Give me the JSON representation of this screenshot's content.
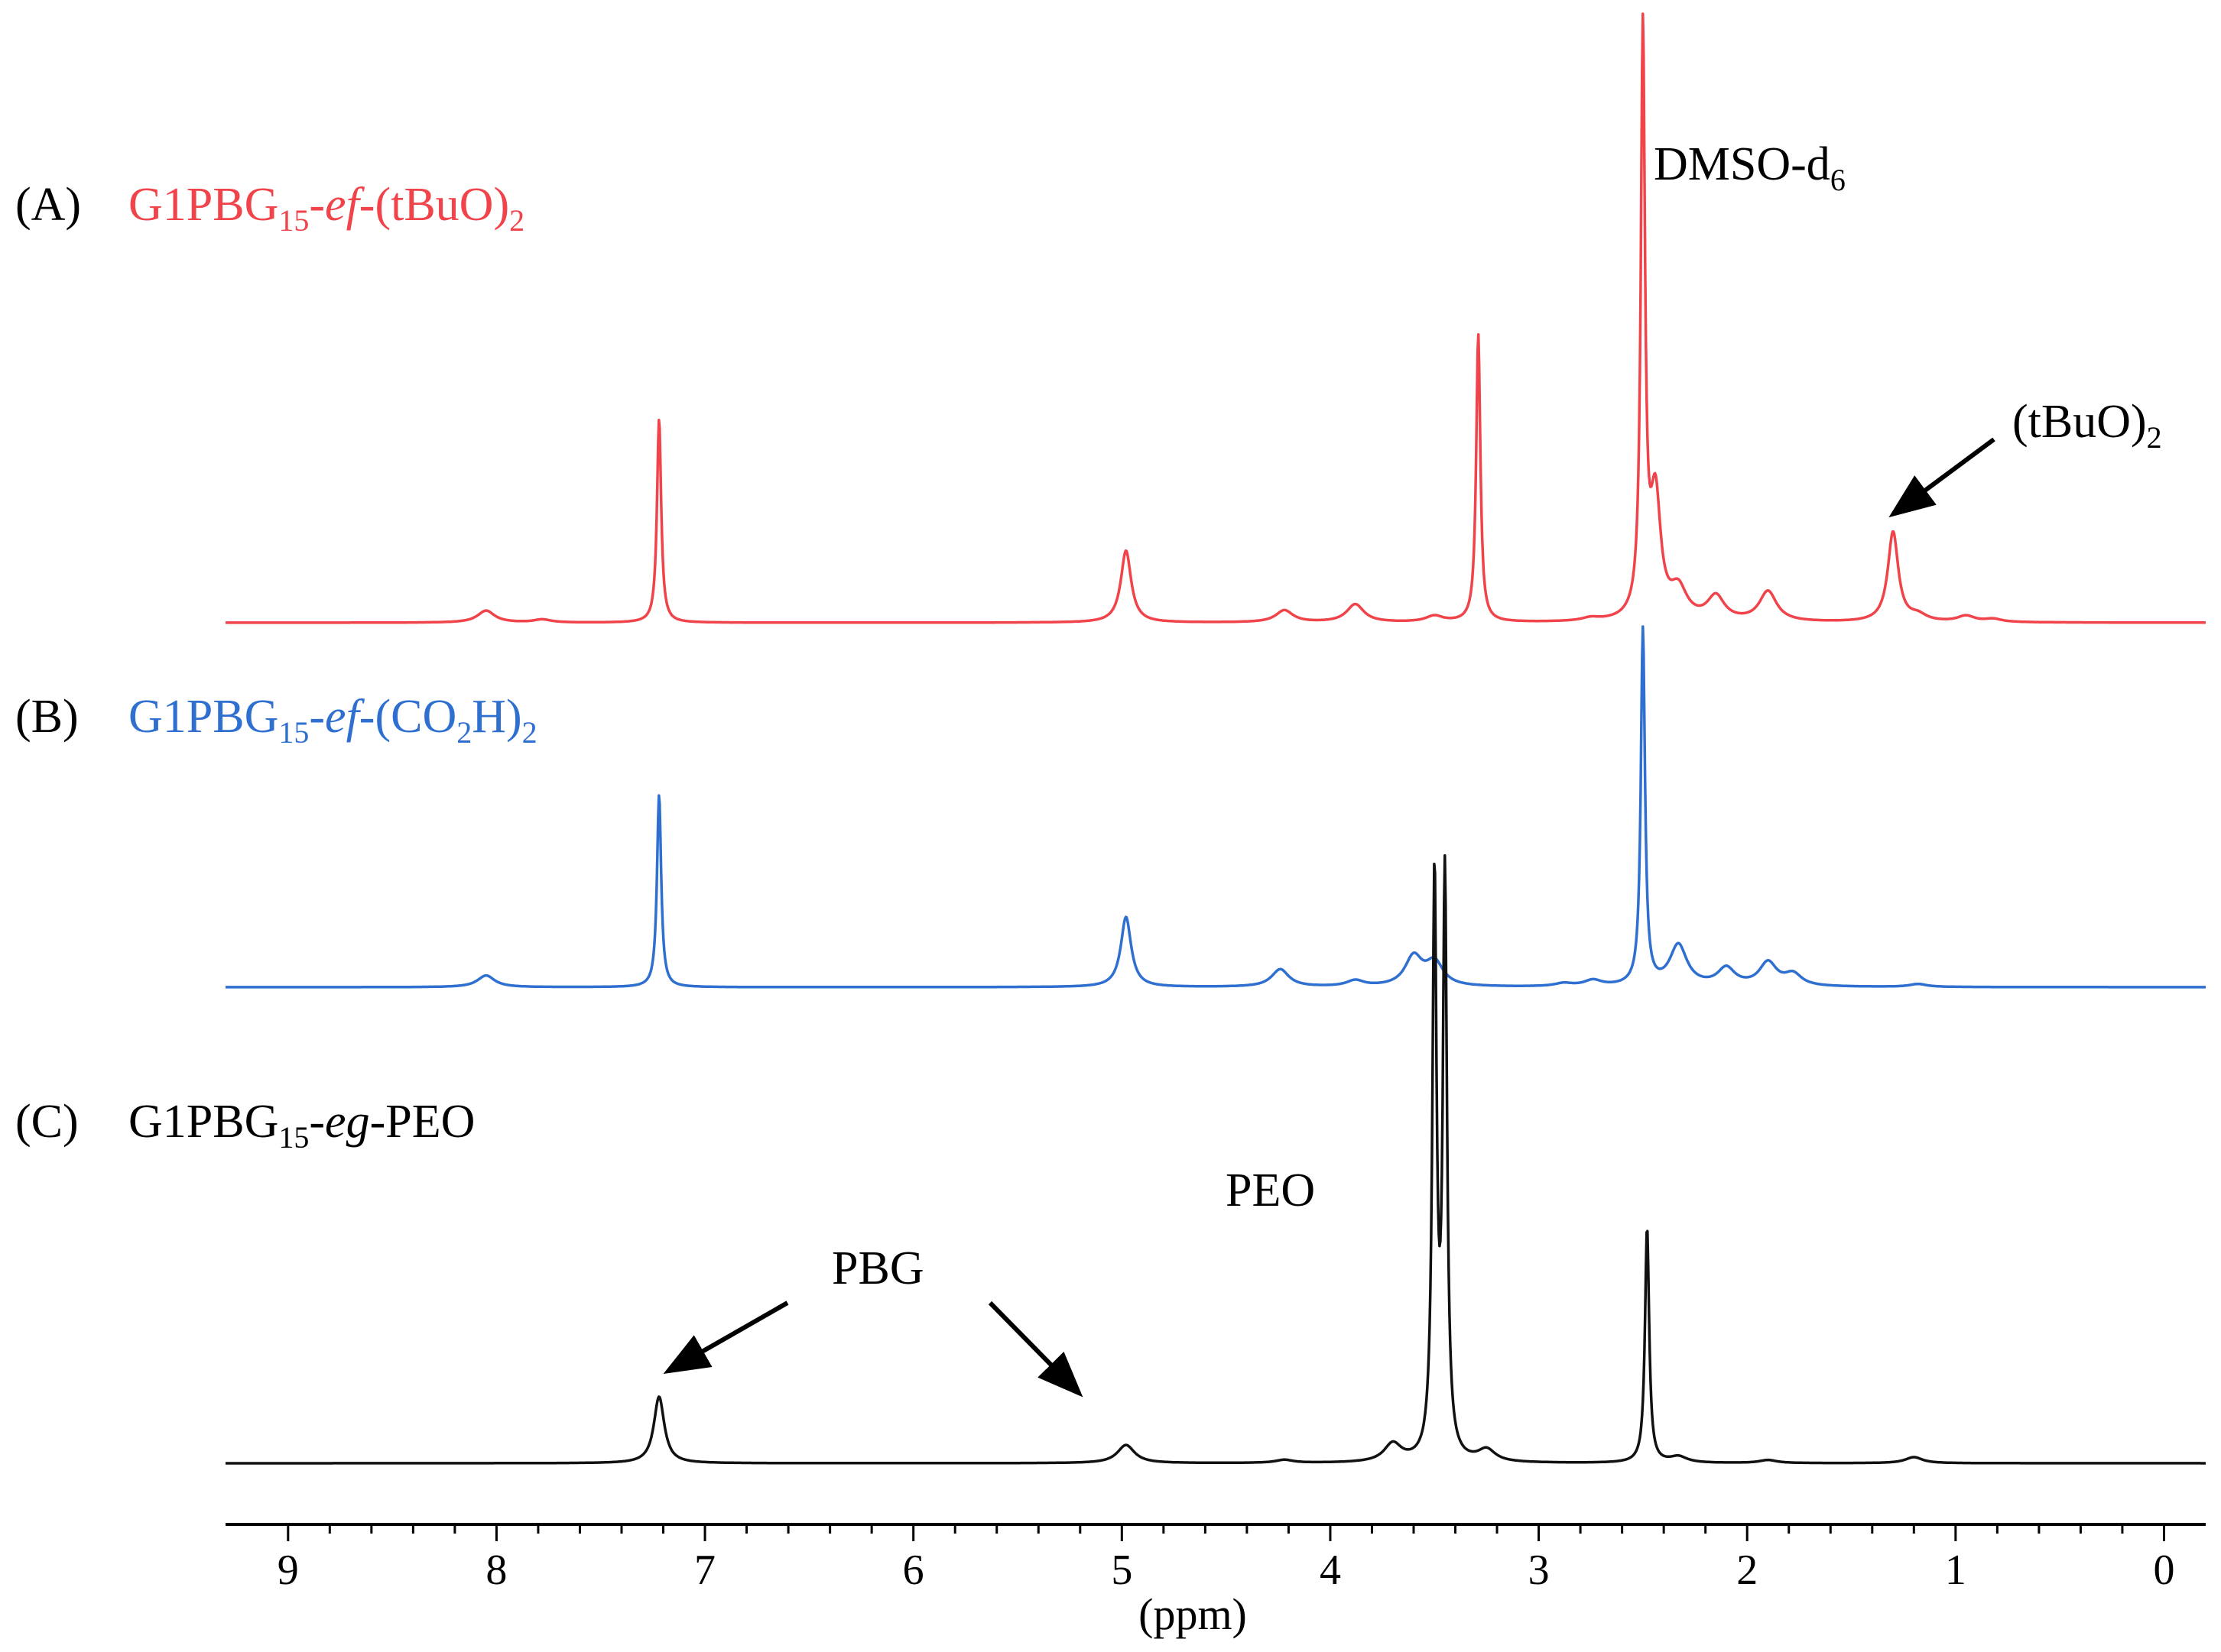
{
  "chart_data": {
    "type": "line",
    "title": "",
    "xlabel": "(ppm)",
    "ylabel": "",
    "xlim": [
      9.3,
      -0.2
    ],
    "x_reversed": true,
    "xticks": [
      9,
      8,
      7,
      6,
      5,
      4,
      3,
      2,
      1,
      0
    ],
    "grid": false,
    "series": [
      {
        "key": "A",
        "panel": "(A)",
        "name_main": "G1PBG",
        "name_sub": "15",
        "name_sep": "-",
        "name_ital": "ef",
        "name_rest": "-(tBuO)",
        "name_tail": "2",
        "color": "#f0434a",
        "peaks": [
          {
            "x": 8.05,
            "h": 0.02
          },
          {
            "x": 7.78,
            "h": 0.005
          },
          {
            "x": 7.22,
            "h": 0.34
          },
          {
            "x": 4.98,
            "h": 0.12
          },
          {
            "x": 4.22,
            "h": 0.02
          },
          {
            "x": 3.88,
            "h": 0.03
          },
          {
            "x": 3.5,
            "h": 0.01
          },
          {
            "x": 3.29,
            "h": 0.48
          },
          {
            "x": 2.75,
            "h": 0.005
          },
          {
            "x": 2.5,
            "h": 0.97
          },
          {
            "x": 2.44,
            "h": 0.2
          },
          {
            "x": 2.33,
            "h": 0.05
          },
          {
            "x": 2.15,
            "h": 0.04
          },
          {
            "x": 1.9,
            "h": 0.05
          },
          {
            "x": 1.3,
            "h": 0.15
          },
          {
            "x": 1.18,
            "h": 0.01
          },
          {
            "x": 0.95,
            "h": 0.01
          },
          {
            "x": 0.82,
            "h": 0.005
          }
        ]
      },
      {
        "key": "B",
        "panel": "(B)",
        "name_main": "G1PBG",
        "name_sub": "15",
        "name_sep": "-",
        "name_ital": "ef",
        "name_rest": "-(CO",
        "name_sub2": "2",
        "name_rest2": "H)",
        "name_tail": "2",
        "color": "#2f6fcf",
        "peaks": [
          {
            "x": 8.05,
            "h": 0.02
          },
          {
            "x": 7.22,
            "h": 0.33
          },
          {
            "x": 4.98,
            "h": 0.12
          },
          {
            "x": 4.24,
            "h": 0.03
          },
          {
            "x": 3.88,
            "h": 0.01
          },
          {
            "x": 3.6,
            "h": 0.05
          },
          {
            "x": 3.5,
            "h": 0.04
          },
          {
            "x": 2.88,
            "h": 0.005
          },
          {
            "x": 2.74,
            "h": 0.01
          },
          {
            "x": 2.5,
            "h": 0.61
          },
          {
            "x": 2.33,
            "h": 0.07
          },
          {
            "x": 2.1,
            "h": 0.03
          },
          {
            "x": 1.9,
            "h": 0.04
          },
          {
            "x": 1.78,
            "h": 0.02
          },
          {
            "x": 1.18,
            "h": 0.005
          }
        ]
      },
      {
        "key": "C",
        "panel": "(C)",
        "name_main": "G1PBG",
        "name_sub": "15",
        "name_sep": "-",
        "name_ital": "eg",
        "name_rest": "-PEO",
        "name_tail": "",
        "color": "#111111",
        "peaks": [
          {
            "x": 7.22,
            "h": 0.11
          },
          {
            "x": 4.98,
            "h": 0.03
          },
          {
            "x": 4.22,
            "h": 0.005
          },
          {
            "x": 3.7,
            "h": 0.03
          },
          {
            "x": 3.5,
            "h": 0.95
          },
          {
            "x": 3.45,
            "h": 0.95
          },
          {
            "x": 3.25,
            "h": 0.02
          },
          {
            "x": 2.48,
            "h": 0.39
          },
          {
            "x": 2.33,
            "h": 0.01
          },
          {
            "x": 1.9,
            "h": 0.005
          },
          {
            "x": 1.2,
            "h": 0.01
          }
        ]
      }
    ],
    "annotations": [
      {
        "key": "dmso",
        "text_main": "DMSO-d",
        "text_sub": "6"
      },
      {
        "key": "tbuo",
        "text_main": "(tBuO)",
        "text_sub": "2"
      },
      {
        "key": "peo",
        "text_main": "PEO",
        "text_sub": ""
      },
      {
        "key": "pbg",
        "text_main": "PBG",
        "text_sub": ""
      }
    ]
  }
}
